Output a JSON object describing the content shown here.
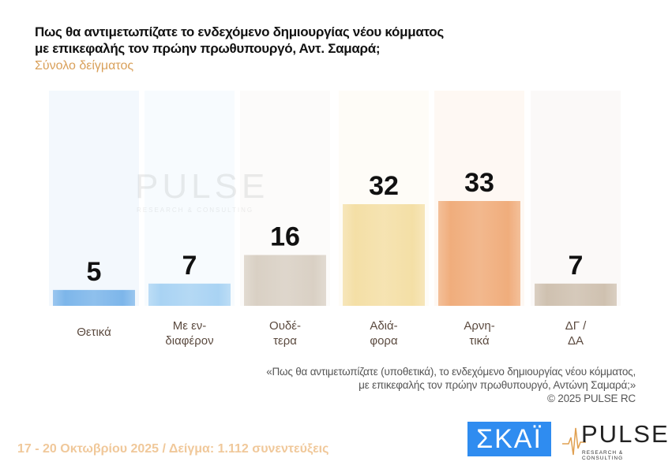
{
  "title_line1": "Πως θα αντιμετωπίζατε το ενδεχόμενο δημιουργίας νέου κόμματος",
  "title_line2": "με επικεφαλής τον πρώην πρωθυπουργό, Αντ. Σαμαρά;",
  "subtitle": "Σύνολο δείγματος",
  "chart_data": {
    "type": "bar",
    "categories": [
      [
        "Θετικά"
      ],
      [
        "Με εν-",
        "διαφέρον"
      ],
      [
        "Ουδέ-",
        "τερα"
      ],
      [
        "Αδιά-",
        "φορα"
      ],
      [
        "Αρνη-",
        "τικά"
      ],
      [
        "ΔΓ /",
        "ΔΑ"
      ]
    ],
    "values": [
      5,
      7,
      16,
      32,
      33,
      7
    ],
    "colors": [
      "#7db6ea",
      "#a9d3f3",
      "#d9d0c4",
      "#f4dfa6",
      "#f0ad7c",
      "#cfc1b0"
    ],
    "ylim": [
      0,
      35
    ],
    "grid": false,
    "legend": "none"
  },
  "note_line1": "«Πως θα αντιμετωπίζατε (υποθετικά), το ενδεχόμενο δημιουργίας νέου κόμματος,",
  "note_line2": "με επικεφαλής τον πρώην πρωθυπουργό, Αντώνη Σαμαρά;»",
  "copyright": "©  2025  PULSE RC",
  "footer": "17 - 20 Οκτωβρίου 2025  /  Δείγμα:  1.112 συνεντεύξεις",
  "logos": {
    "skai": "ΣΚΑΪ",
    "pulse": "PULSE",
    "pulse_tag": "RESEARCH & CONSULTING"
  },
  "watermark": {
    "word": "PULSE",
    "tag": "RESEARCH & CONSULTING"
  }
}
